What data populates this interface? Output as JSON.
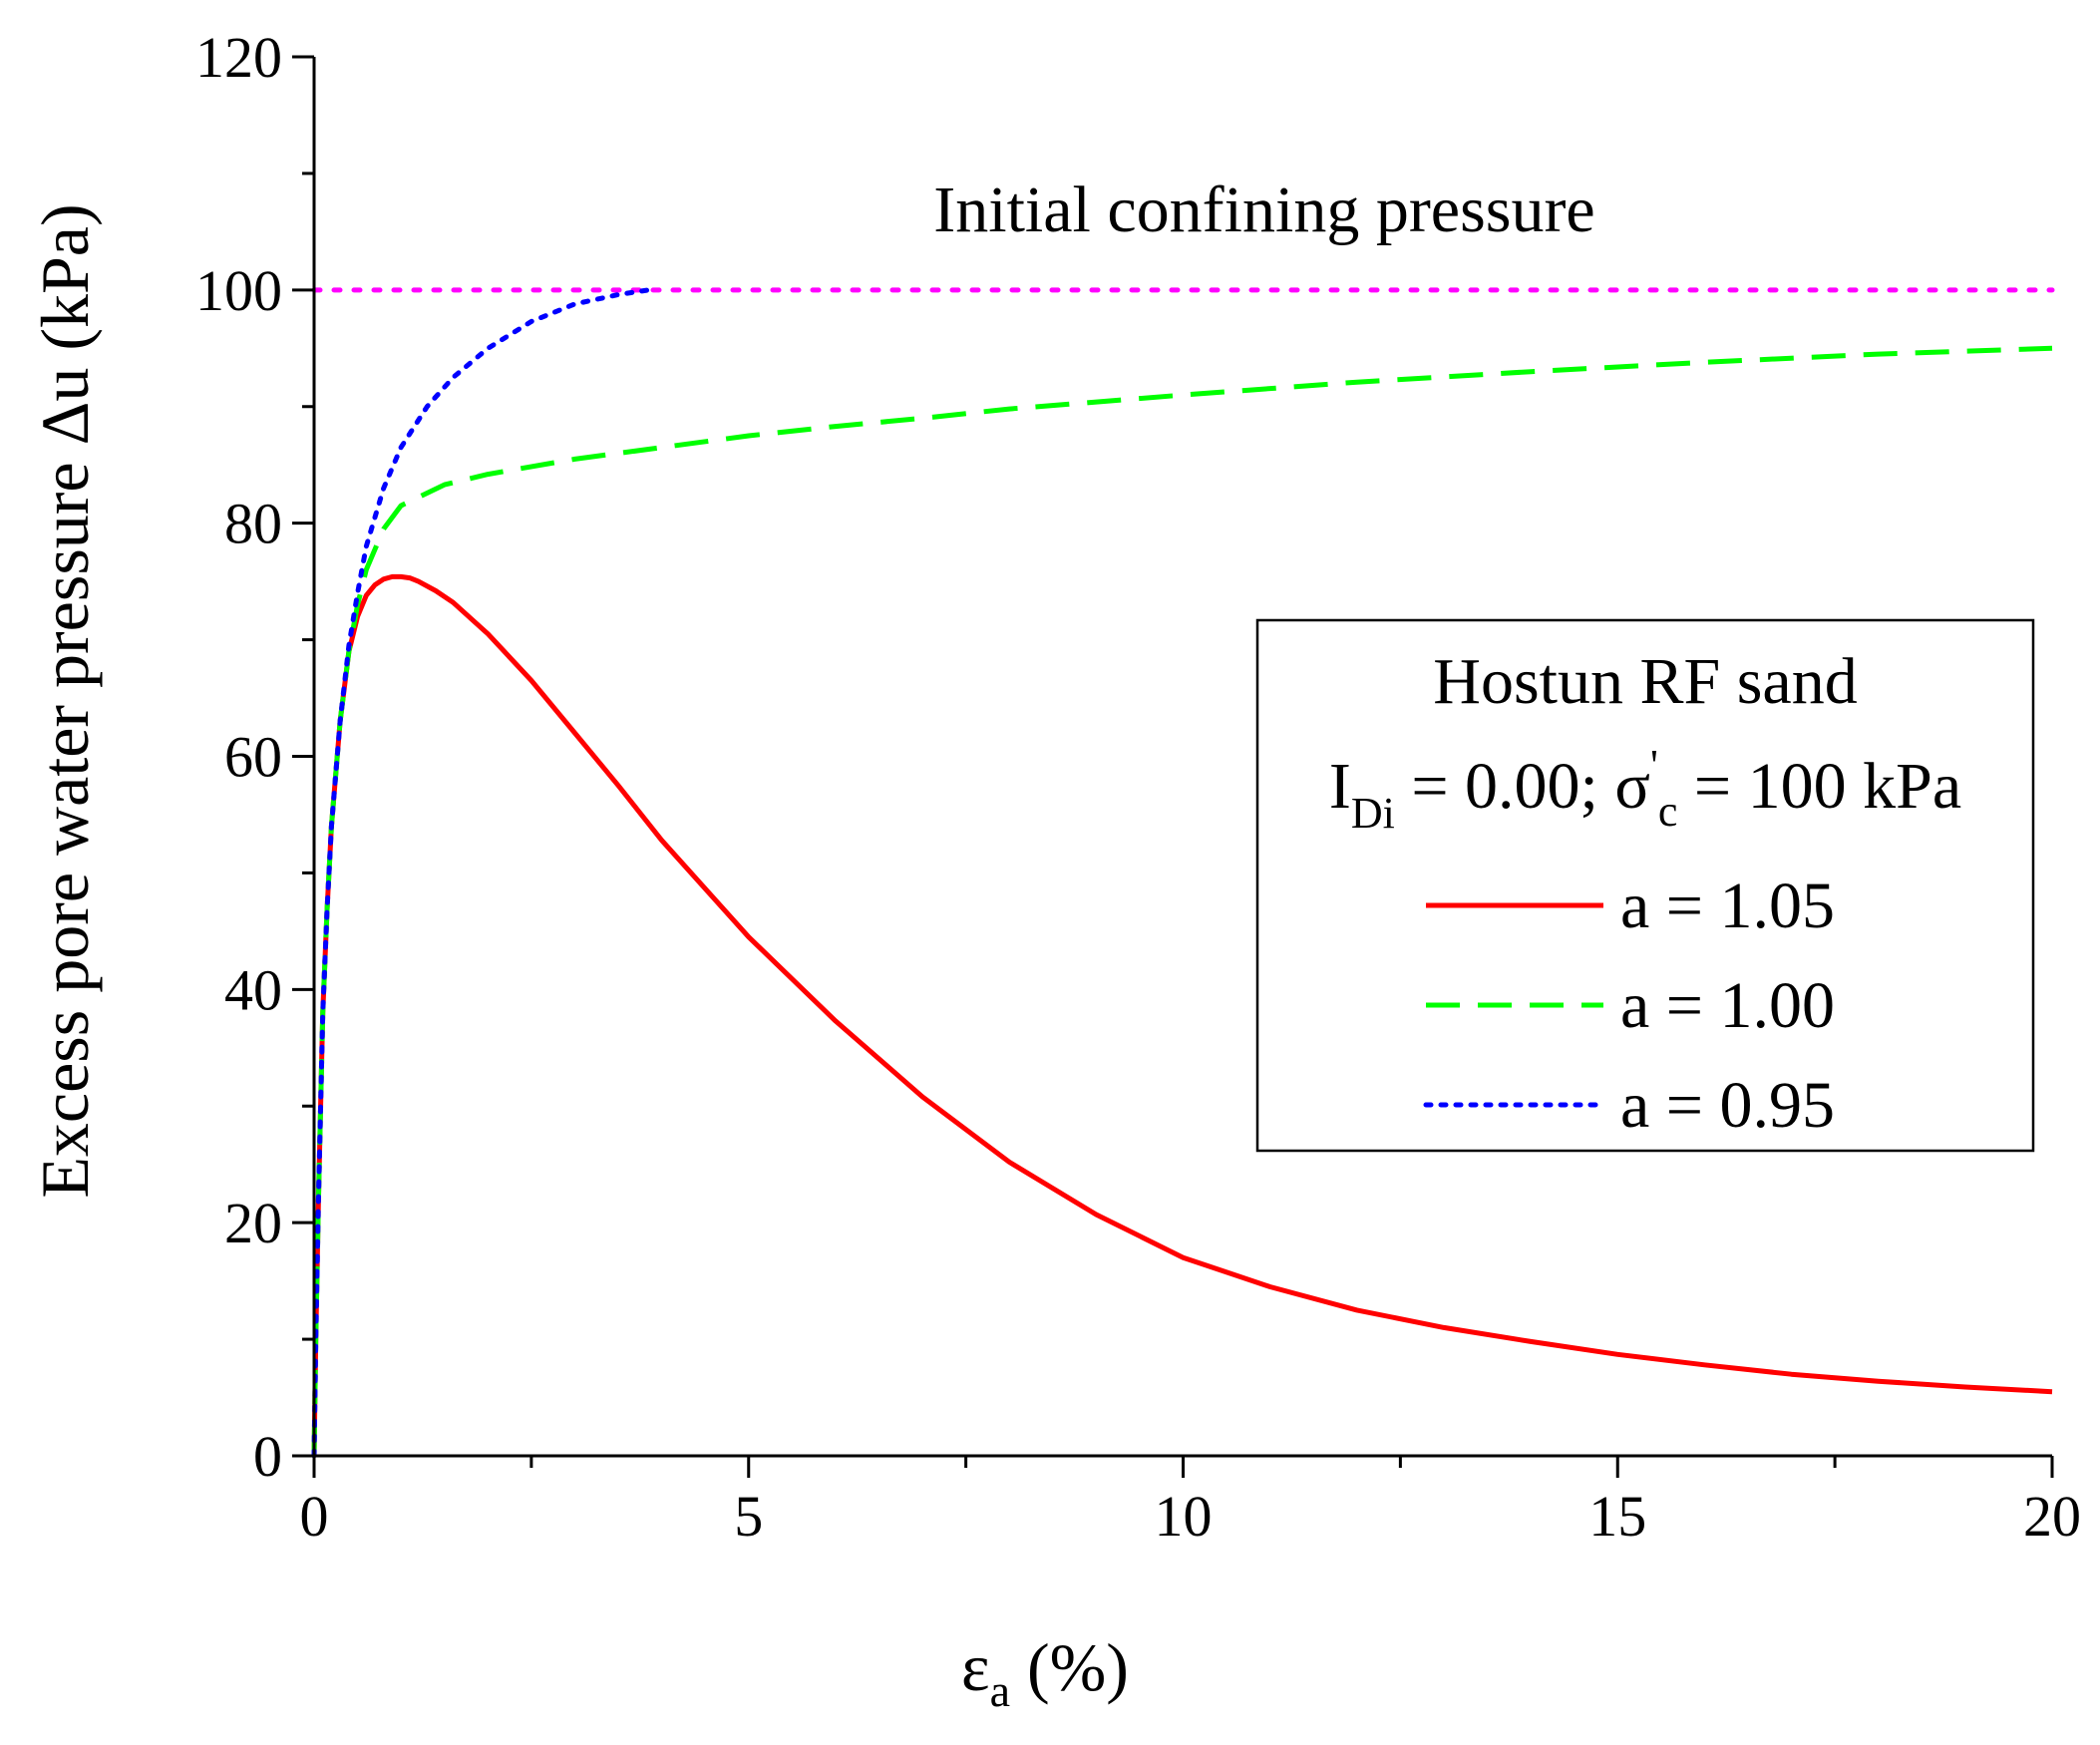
{
  "chart_data": {
    "type": "line",
    "title": "",
    "xlabel_main": "ε",
    "xlabel_sub": "a",
    "xlabel_unit": " (%)",
    "ylabel": "Excess pore water pressure Δu (kPa)",
    "xlim": [
      0,
      20
    ],
    "ylim": [
      0,
      120
    ],
    "x_ticks": [
      0,
      5,
      10,
      15,
      20
    ],
    "x_tick_labels": [
      "0",
      "5",
      "10",
      "15",
      "20"
    ],
    "y_ticks": [
      0,
      20,
      40,
      60,
      80,
      100,
      120
    ],
    "y_tick_labels": [
      "0",
      "20",
      "40",
      "60",
      "80",
      "100",
      "120"
    ],
    "grid": false,
    "annotation": "Initial confining pressure",
    "reference_line": {
      "y": 100,
      "color": "#ff00ff",
      "style": "dotted"
    },
    "legend": {
      "placement": "center-right",
      "title": "Hostun RF sand",
      "subtitle_parts": [
        "I",
        "Di",
        " = 0.00; σ",
        "'",
        "c",
        " = 100 kPa"
      ]
    },
    "series": [
      {
        "name": "a = 1.05",
        "color": "#ff0000",
        "style": "solid",
        "x": [
          0,
          0.02,
          0.05,
          0.1,
          0.15,
          0.2,
          0.3,
          0.4,
          0.5,
          0.6,
          0.7,
          0.8,
          0.9,
          1.0,
          1.1,
          1.2,
          1.4,
          1.6,
          2.0,
          2.5,
          3.0,
          3.5,
          4.0,
          5.0,
          6.0,
          7.0,
          8.0,
          9.0,
          10.0,
          11.0,
          12.0,
          13.0,
          14.0,
          15.0,
          16.0,
          17.0,
          18.0,
          19.0,
          20.0
        ],
        "y": [
          0,
          10,
          22,
          38,
          47,
          54,
          63,
          69,
          72,
          73.8,
          74.7,
          75.2,
          75.4,
          75.4,
          75.3,
          75.0,
          74.2,
          73.2,
          70.5,
          66.5,
          62,
          57.5,
          52.8,
          44.5,
          37.3,
          30.8,
          25.2,
          20.7,
          17.0,
          14.5,
          12.5,
          11.0,
          9.8,
          8.7,
          7.8,
          7.0,
          6.4,
          5.9,
          5.5
        ]
      },
      {
        "name": "a = 1.00",
        "color": "#00ff00",
        "style": "dashed",
        "x": [
          0,
          0.02,
          0.05,
          0.1,
          0.15,
          0.2,
          0.3,
          0.4,
          0.5,
          0.6,
          0.8,
          1.0,
          1.5,
          2.0,
          3.0,
          4.0,
          5.0,
          6.0,
          7.0,
          8.0,
          10.0,
          12.0,
          14.0,
          16.0,
          18.0,
          20.0
        ],
        "y": [
          0,
          10,
          22,
          38,
          47,
          54,
          63,
          69,
          73,
          76,
          79.5,
          81.5,
          83.3,
          84.2,
          85.5,
          86.5,
          87.5,
          88.3,
          89.0,
          89.8,
          91.0,
          92.1,
          93.0,
          93.8,
          94.5,
          95.0
        ]
      },
      {
        "name": "a = 0.95",
        "color": "#0000ff",
        "style": "dotted",
        "x": [
          0,
          0.02,
          0.05,
          0.1,
          0.15,
          0.2,
          0.3,
          0.4,
          0.5,
          0.6,
          0.8,
          1.0,
          1.3,
          1.6,
          2.0,
          2.5,
          3.0,
          3.5,
          3.85
        ],
        "y": [
          0,
          10,
          22,
          38,
          47,
          54,
          63,
          69.5,
          74,
          78,
          83,
          86.5,
          90,
          92.5,
          95,
          97.3,
          98.8,
          99.6,
          100
        ]
      }
    ]
  }
}
